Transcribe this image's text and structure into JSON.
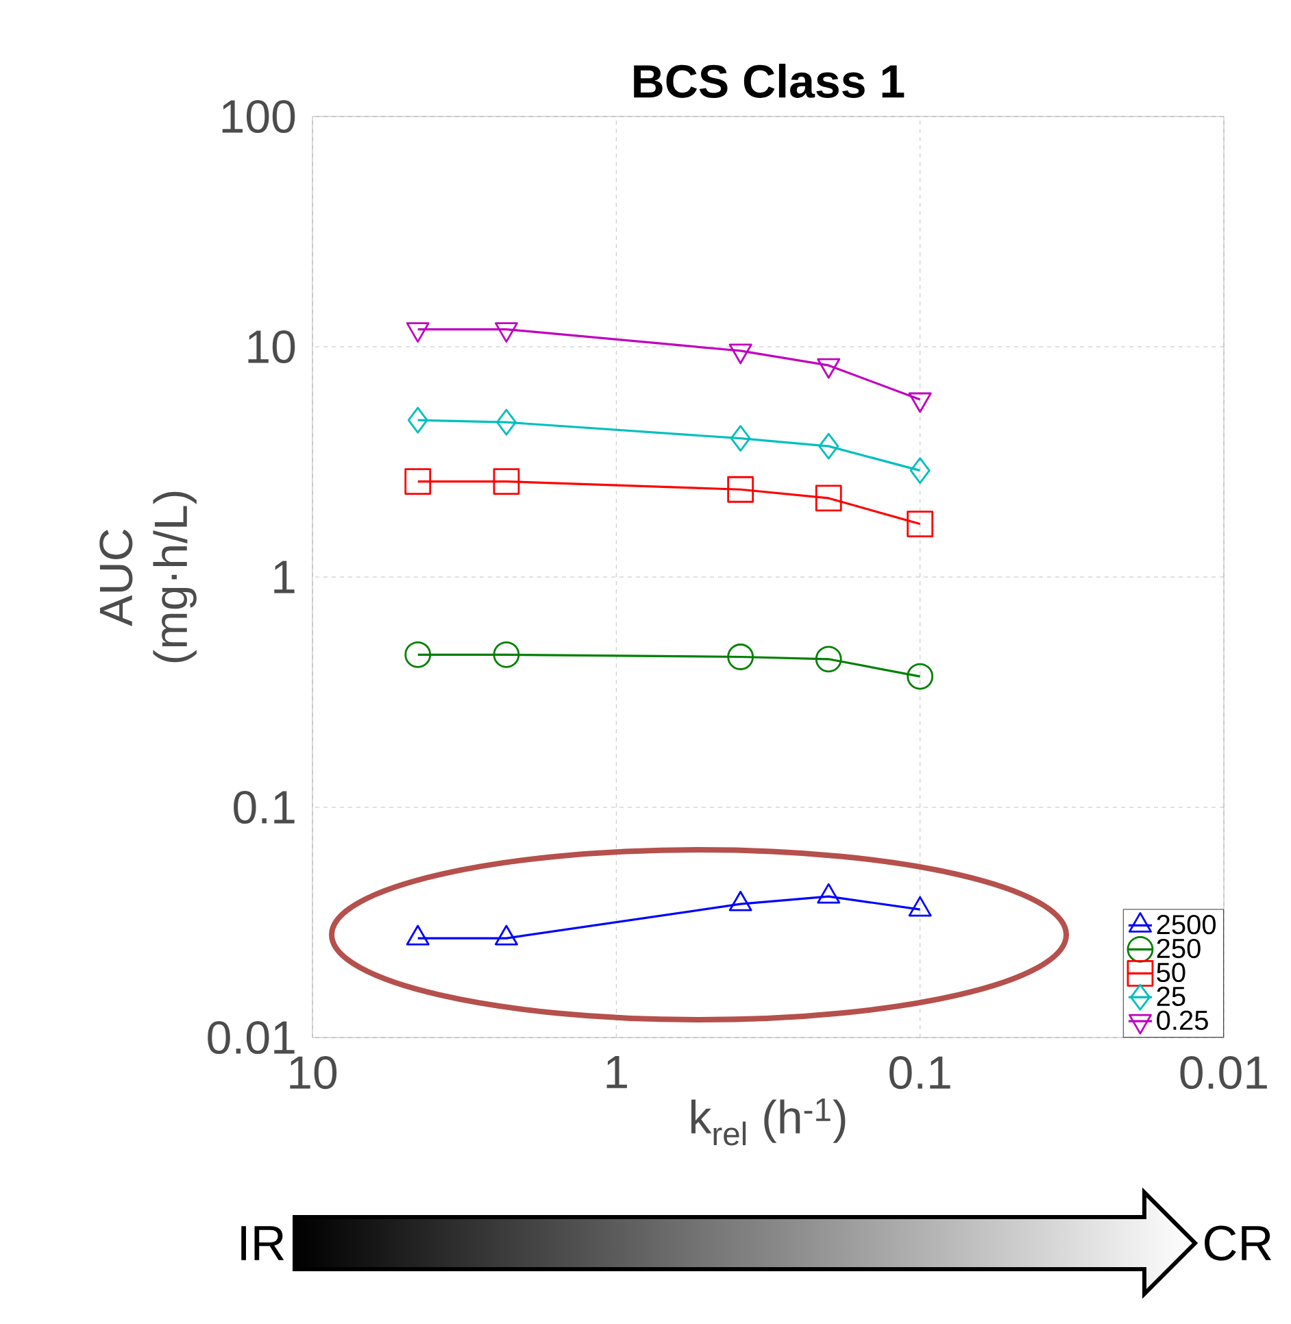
{
  "chart_data": {
    "type": "line",
    "title": "BCS Class 1",
    "xlabel": "k$_{rel}$ (h$^{-1}$)",
    "ylabel": "AUC (mg·h/L)",
    "log": "xy",
    "xlim": [
      10,
      0.01
    ],
    "ylim": [
      0.01,
      100
    ],
    "xticks": [
      10,
      1,
      0.1,
      0.01
    ],
    "yticks": [
      0.01,
      0.1,
      1,
      10,
      100
    ],
    "grid": true,
    "legend": "bottom right",
    "x": [
      4.5,
      2.3,
      0.39,
      0.2,
      0.1
    ],
    "series": [
      {
        "name": "2500",
        "color": "#0000ff",
        "marker": "triangle",
        "values": [
          0.027,
          0.027,
          0.038,
          0.041,
          0.036
        ]
      },
      {
        "name": "250",
        "color": "#008000",
        "marker": "circle",
        "values": [
          0.46,
          0.46,
          0.45,
          0.44,
          0.37
        ]
      },
      {
        "name": "50",
        "color": "#ff0000",
        "marker": "square",
        "values": [
          2.6,
          2.6,
          2.4,
          2.2,
          1.7
        ]
      },
      {
        "name": "25",
        "color": "#00bfbf",
        "marker": "diamond",
        "values": [
          4.8,
          4.7,
          4.0,
          3.7,
          2.9
        ]
      },
      {
        "name": "0.25",
        "color": "#bf00bf",
        "marker": "triangle_down",
        "values": [
          11.9,
          11.9,
          9.6,
          8.3,
          5.9
        ]
      }
    ],
    "annotations": [
      "IR",
      "CR"
    ]
  }
}
